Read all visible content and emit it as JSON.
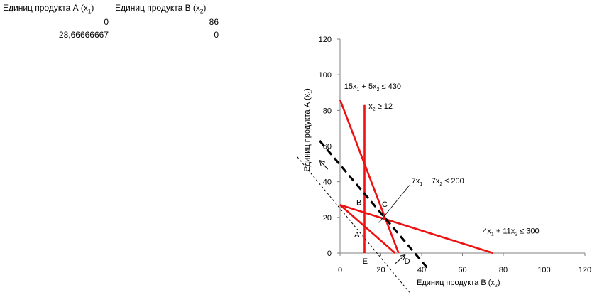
{
  "table": {
    "headers": [
      {
        "text": "Единиц продукта А (x",
        "sub": "1",
        "end": ")"
      },
      {
        "text": "Единиц продукта В (x",
        "sub": "2",
        "end": ")"
      }
    ],
    "rows": [
      [
        "0",
        "86"
      ],
      [
        "28,66666667",
        "0"
      ]
    ]
  },
  "chart_data": {
    "type": "line",
    "xlabel": {
      "text": "Единиц продукта В (x",
      "sub": "2",
      "end": ")"
    },
    "ylabel": {
      "text": "Единиц продукта А (x",
      "sub": "1",
      "end": ")"
    },
    "xlim": [
      0,
      120
    ],
    "ylim": [
      0,
      120
    ],
    "xticks": [
      0,
      20,
      40,
      60,
      80,
      100,
      120
    ],
    "yticks": [
      0,
      20,
      40,
      60,
      80,
      100,
      120
    ],
    "grid": false,
    "series": [
      {
        "name": "15x1 + 5x2 ≤ 430",
        "color": "#ee1111",
        "style": "solid",
        "points": [
          [
            0,
            86
          ],
          [
            28.6667,
            0
          ]
        ]
      },
      {
        "name": "x2 ≥ 12",
        "color": "#ee1111",
        "style": "solid",
        "points": [
          [
            12,
            0
          ],
          [
            12,
            83
          ]
        ]
      },
      {
        "name": "7x1 + 7x2 ≤ 200",
        "color": "#ee1111",
        "style": "solid",
        "points": [
          [
            0,
            27
          ],
          [
            27,
            0
          ]
        ]
      },
      {
        "name": "4x1 + 11x2 ≤ 300",
        "color": "#ee1111",
        "style": "solid",
        "points": [
          [
            0,
            27
          ],
          [
            75,
            0
          ]
        ]
      },
      {
        "name": "objective-bold",
        "color": "#000000",
        "style": "bold-dash",
        "points": [
          [
            -10,
            63
          ],
          [
            44,
            -10
          ]
        ]
      },
      {
        "name": "objective-thin",
        "color": "#000000",
        "style": "thin-dash",
        "points": [
          [
            -21,
            54
          ],
          [
            34,
            -22
          ]
        ]
      }
    ],
    "annotations": [
      {
        "kind": "label",
        "base": "15x",
        "s1": "1",
        "mid": " + 5x",
        "s2": "2",
        "end": " ≤ 430",
        "x": 2,
        "y": 92
      },
      {
        "kind": "label",
        "base": "x",
        "s1": "2",
        "mid": " ≥ 12",
        "s2": "",
        "end": "",
        "x": 14,
        "y": 81
      },
      {
        "kind": "label",
        "base": "7x",
        "s1": "1",
        "mid": " + 7x",
        "s2": "2",
        "end": " ≤ 200",
        "x": 35,
        "y": 39
      },
      {
        "kind": "label",
        "base": "4x",
        "s1": "1",
        "mid": " + 11x",
        "s2": "2",
        "end": " ≤ 300",
        "x": 70,
        "y": 11
      }
    ],
    "points": [
      {
        "label": "A",
        "x": 7,
        "y": 9
      },
      {
        "label": "B",
        "x": 8,
        "y": 27
      },
      {
        "label": "C",
        "x": 20.5,
        "y": 26
      },
      {
        "label": "D",
        "x": 31.5,
        "y": -6
      },
      {
        "label": "E",
        "x": 11,
        "y": -6
      }
    ],
    "arrows": [
      {
        "name": "arrow-up-left",
        "from": [
          -6,
          47
        ],
        "to": [
          -10,
          52
        ]
      },
      {
        "name": "arrow-down-right",
        "from": [
          27,
          -6
        ],
        "to": [
          32,
          -1
        ]
      }
    ],
    "callout": {
      "from": [
        19,
        17
      ],
      "to": [
        34,
        38
      ]
    }
  }
}
